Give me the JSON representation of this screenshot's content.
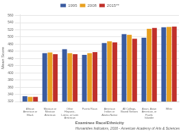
{
  "chart_data": {
    "type": "bar",
    "categories": [
      "African\nAmerican or\nBlack",
      "Mexican or\nMexican\nAmerican",
      "Other\nHispanic,\nLatino, or Latin\nAmerican",
      "Puerto Rican",
      "American\nIndian or\nAlaska Native",
      "All College-\nBound Seniors",
      "Asian, Asian\nAmerican, or\nPacific\nIslander",
      "White"
    ],
    "series": [
      {
        "name": "1995",
        "color": "#3A5BA0",
        "values": [
          335,
          455,
          466,
          450,
          483,
          508,
          498,
          527
        ]
      },
      {
        "name": "2008",
        "color": "#E8A020",
        "values": [
          333,
          457,
          455,
          455,
          488,
          506,
          523,
          528
        ]
      },
      {
        "name": "2015**",
        "color": "#C0302A",
        "values": [
          333,
          452,
          452,
          458,
          485,
          495,
          525,
          529
        ]
      }
    ],
    "xlabel": "Examinee Race/Ethnicity",
    "ylabel": "Mean Score",
    "ylim": [
      320,
      563
    ],
    "yticks": [
      320,
      340,
      360,
      380,
      400,
      420,
      440,
      460,
      480,
      500,
      520,
      540,
      560
    ],
    "grid": true,
    "legend": "upper center",
    "annotations": [
      {
        "text": "Humanities Indicators, 2016 - American Academy of Arts & Sciences"
      }
    ]
  }
}
